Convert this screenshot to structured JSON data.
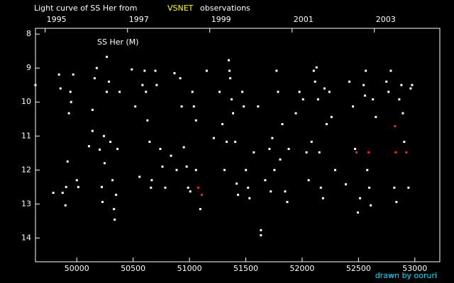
{
  "chart_data": {
    "type": "scatter",
    "title_parts": [
      "Light curve of SS Her from",
      "VSNET",
      "observations"
    ],
    "title_colors": [
      "#ffffff",
      "#ffff00",
      "#ffffff"
    ],
    "annotation": "SS Her (M)",
    "credit": "drawn by ooruri",
    "xlim": [
      49633,
      53222
    ],
    "xticks": [
      50000,
      50500,
      51000,
      51500,
      52000,
      52500,
      53000
    ],
    "x2ticks": [
      {
        "value": 49719,
        "label": "1995"
      },
      {
        "value": 50450,
        "label": "1997"
      },
      {
        "value": 51180,
        "label": "1999"
      },
      {
        "value": 51911,
        "label": "2001"
      },
      {
        "value": 52641,
        "label": "2003"
      }
    ],
    "ylim": [
      14.7,
      7.83
    ],
    "yticks": [
      8,
      9,
      10,
      11,
      12,
      13,
      14
    ],
    "series": [
      {
        "color": "#ffffff",
        "x": [
          49633,
          49791,
          49842,
          49855,
          49874,
          49899,
          49905,
          49918,
          49930,
          49943,
          49949,
          49968,
          50000,
          50013,
          50108,
          50139,
          50139,
          50158,
          50177,
          50203,
          50222,
          50228,
          50241,
          50247,
          50266,
          50266,
          50285,
          50298,
          50317,
          50330,
          50336,
          50349,
          50361,
          50380,
          50488,
          50519,
          50557,
          50583,
          50602,
          50614,
          50627,
          50646,
          50658,
          50665,
          50697,
          50709,
          50741,
          50760,
          50785,
          50836,
          50867,
          50886,
          50918,
          50931,
          50950,
          50975,
          50988,
          51007,
          51026,
          51039,
          51058,
          51058,
          51096,
          51153,
          51216,
          51267,
          51292,
          51311,
          51330,
          51349,
          51355,
          51362,
          51374,
          51387,
          51406,
          51419,
          51431,
          51469,
          51482,
          51501,
          51520,
          51533,
          51571,
          51609,
          51634,
          51634,
          51672,
          51710,
          51722,
          51735,
          51754,
          51773,
          51786,
          51805,
          51824,
          51849,
          51868,
          51881,
          51944,
          51976,
          52008,
          52039,
          52058,
          52084,
          52103,
          52115,
          52128,
          52141,
          52153,
          52166,
          52185,
          52198,
          52217,
          52242,
          52261,
          52293,
          52388,
          52419,
          52451,
          52470,
          52495,
          52514,
          52546,
          52558,
          52565,
          52578,
          52596,
          52609,
          52628,
          52654,
          52748,
          52767,
          52787,
          52818,
          52837,
          52862,
          52881,
          52894,
          52906,
          52944,
          52963,
          52976
        ],
        "y": [
          9.5,
          12.67,
          9.19,
          9.6,
          12.67,
          13.04,
          12.5,
          11.75,
          10.33,
          9.7,
          10.0,
          9.19,
          12.3,
          12.5,
          11.3,
          10.85,
          10.23,
          9.3,
          9.0,
          11.4,
          12.5,
          12.94,
          11.0,
          11.8,
          8.67,
          9.7,
          9.4,
          11.17,
          12.3,
          13.15,
          13.46,
          12.73,
          11.38,
          9.7,
          9.04,
          10.13,
          12.2,
          9.5,
          9.08,
          9.7,
          10.54,
          11.17,
          12.52,
          12.3,
          9.08,
          9.5,
          11.38,
          11.9,
          12.52,
          11.58,
          9.15,
          12.0,
          9.3,
          10.13,
          11.33,
          11.9,
          12.52,
          12.63,
          9.7,
          10.13,
          10.54,
          12.0,
          13.15,
          9.08,
          11.06,
          9.7,
          10.65,
          12.0,
          11.17,
          8.77,
          9.08,
          9.3,
          9.92,
          10.33,
          11.17,
          12.4,
          12.73,
          9.7,
          10.13,
          12.0,
          12.52,
          12.83,
          11.48,
          10.13,
          13.77,
          13.92,
          12.3,
          11.38,
          12.63,
          11.06,
          12.0,
          9.08,
          9.7,
          11.69,
          10.65,
          12.63,
          12.94,
          11.38,
          10.33,
          9.7,
          9.92,
          11.48,
          12.3,
          11.17,
          9.08,
          9.4,
          8.98,
          9.92,
          11.48,
          12.52,
          12.83,
          9.6,
          10.65,
          9.7,
          10.44,
          12.0,
          12.42,
          9.4,
          10.13,
          11.38,
          13.25,
          12.83,
          9.5,
          9.81,
          9.08,
          12.0,
          12.52,
          13.04,
          9.92,
          10.44,
          9.4,
          9.7,
          9.08,
          12.52,
          12.94,
          9.92,
          9.5,
          10.33,
          11.17,
          12.52,
          9.6,
          9.5
        ]
      },
      {
        "color": "#ff2020",
        "x": [
          51077,
          51109,
          52482,
          52590,
          52824,
          52830,
          52925
        ],
        "y": [
          12.52,
          12.73,
          11.48,
          11.48,
          10.71,
          11.48,
          11.48
        ]
      }
    ]
  }
}
